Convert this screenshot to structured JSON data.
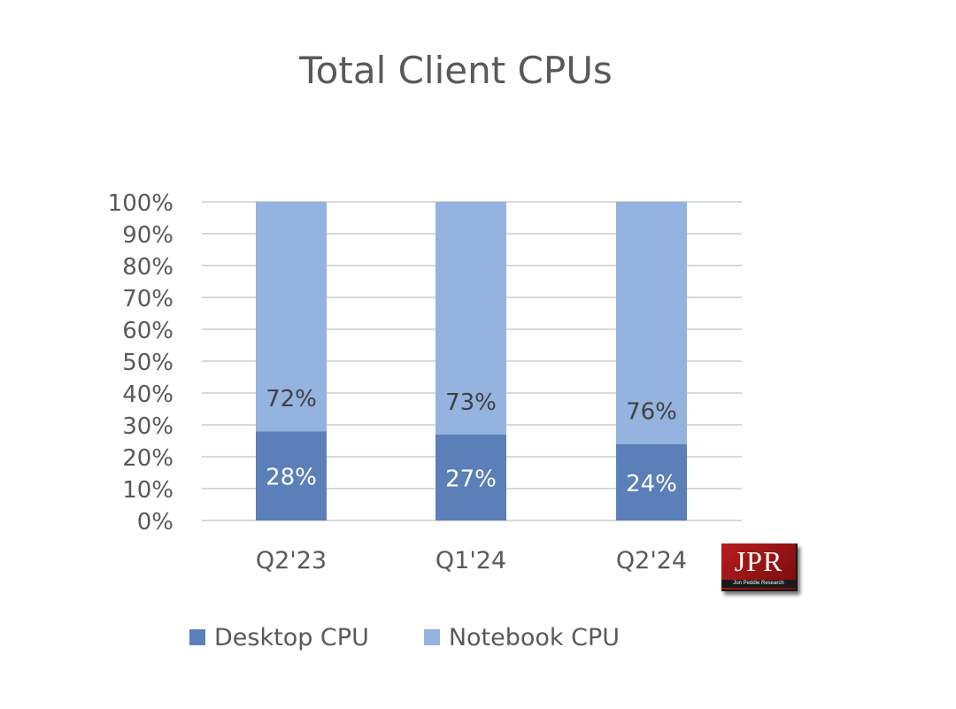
{
  "chart_data": {
    "type": "bar",
    "stacked": true,
    "title": "Total Client CPUs",
    "categories": [
      "Q2'23",
      "Q1'24",
      "Q2'24"
    ],
    "series": [
      {
        "name": "Desktop CPU",
        "values": [
          28,
          27,
          24
        ],
        "labels": [
          "28%",
          "27%",
          "24%"
        ],
        "color": "#5b7fb8"
      },
      {
        "name": "Notebook CPU",
        "values": [
          72,
          73,
          76
        ],
        "labels": [
          "72%",
          "73%",
          "76%"
        ],
        "color": "#94b3df"
      }
    ],
    "ylim": [
      0,
      100
    ],
    "yticks": [
      "0%",
      "10%",
      "20%",
      "30%",
      "40%",
      "50%",
      "60%",
      "70%",
      "80%",
      "90%",
      "100%"
    ],
    "grid": true,
    "legend": "bottom",
    "gridColor": "#d9d9d9",
    "textColor": "#595959"
  },
  "logo": {
    "text": "JPR",
    "subtext": "Jon Peddie Research"
  }
}
